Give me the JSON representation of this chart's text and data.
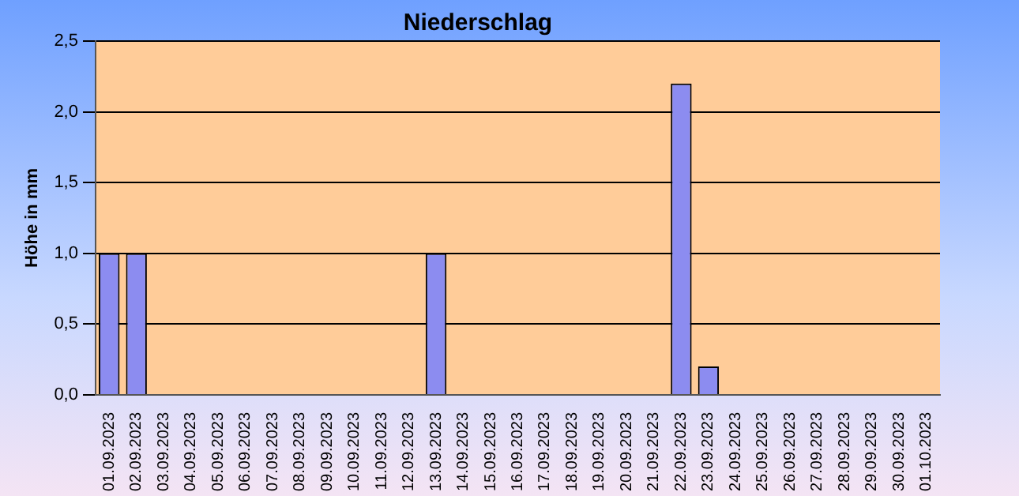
{
  "chart_data": {
    "type": "bar",
    "title": "Niederschlag",
    "ylabel": "Höhe in mm",
    "categories": [
      "01.09.2023",
      "02.09.2023",
      "03.09.2023",
      "04.09.2023",
      "05.09.2023",
      "06.09.2023",
      "07.09.2023",
      "08.09.2023",
      "09.09.2023",
      "10.09.2023",
      "11.09.2023",
      "12.09.2023",
      "13.09.2023",
      "14.09.2023",
      "15.09.2023",
      "16.09.2023",
      "17.09.2023",
      "18.09.2023",
      "19.09.2023",
      "20.09.2023",
      "21.09.2023",
      "22.09.2023",
      "23.09.2023",
      "24.09.2023",
      "25.09.2023",
      "26.09.2023",
      "27.09.2023",
      "28.09.2023",
      "29.09.2023",
      "30.09.2023",
      "01.10.2023"
    ],
    "values": [
      1.0,
      1.0,
      0,
      0,
      0,
      0,
      0,
      0,
      0,
      0,
      0,
      0,
      1.0,
      0,
      0,
      0,
      0,
      0,
      0,
      0,
      0,
      2.2,
      0.2,
      0,
      0,
      0,
      0,
      0,
      0,
      0,
      0
    ],
    "color": "#8c8cf0",
    "ylim": [
      0,
      2.5
    ],
    "yticks": [
      {
        "value": 0,
        "label": "0,0"
      },
      {
        "value": 0.5,
        "label": "0,5"
      },
      {
        "value": 1,
        "label": "1,0"
      },
      {
        "value": 1.5,
        "label": "1,5"
      },
      {
        "value": 2,
        "label": "2,0"
      },
      {
        "value": 2.5,
        "label": "2,5"
      }
    ],
    "grid": "y",
    "legend": false
  }
}
